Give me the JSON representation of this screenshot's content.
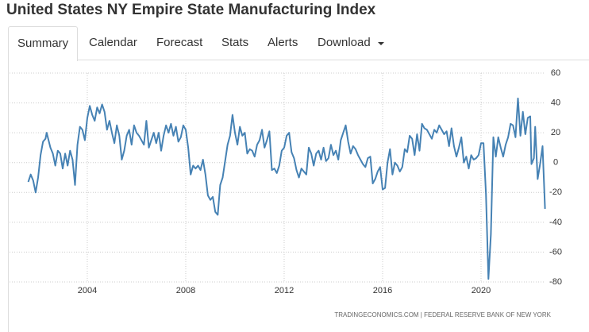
{
  "header": {
    "title": "United States NY Empire State Manufacturing Index"
  },
  "tabs": [
    "Summary",
    "Calendar",
    "Forecast",
    "Stats",
    "Alerts",
    "Download"
  ],
  "chart_data": {
    "type": "line",
    "source": "TRADINGECONOMICS.COM | FEDERAL RESERVE BANK OF NEW YORK",
    "color": "#4682b4",
    "grid": true,
    "x": [
      2001.6,
      2001.7,
      2001.8,
      2001.9,
      2002.0,
      2002.1,
      2002.2,
      2002.3,
      2002.35,
      2002.5,
      2002.6,
      2002.7,
      2002.8,
      2002.9,
      2003.0,
      2003.1,
      2003.2,
      2003.3,
      2003.4,
      2003.5,
      2003.6,
      2003.7,
      2003.8,
      2003.9,
      2004.0,
      2004.1,
      2004.2,
      2004.3,
      2004.4,
      2004.5,
      2004.6,
      2004.7,
      2004.8,
      2004.9,
      2005.0,
      2005.1,
      2005.2,
      2005.3,
      2005.4,
      2005.5,
      2005.6,
      2005.7,
      2005.8,
      2005.9,
      2006.0,
      2006.1,
      2006.3,
      2006.4,
      2006.5,
      2006.6,
      2006.7,
      2006.8,
      2006.9,
      2007.0,
      2007.1,
      2007.2,
      2007.3,
      2007.4,
      2007.5,
      2007.6,
      2007.7,
      2007.8,
      2007.9,
      2008.0,
      2008.1,
      2008.2,
      2008.3,
      2008.4,
      2008.5,
      2008.6,
      2008.7,
      2008.8,
      2008.9,
      2009.0,
      2009.1,
      2009.2,
      2009.3,
      2009.4,
      2009.5,
      2009.6,
      2009.7,
      2009.8,
      2009.9,
      2010.0,
      2010.1,
      2010.2,
      2010.3,
      2010.4,
      2010.5,
      2010.6,
      2010.7,
      2010.8,
      2010.9,
      2011.0,
      2011.1,
      2011.2,
      2011.3,
      2011.4,
      2011.5,
      2011.6,
      2011.7,
      2011.8,
      2011.9,
      2012.0,
      2012.1,
      2012.2,
      2012.3,
      2012.4,
      2012.5,
      2012.6,
      2012.7,
      2012.8,
      2012.9,
      2013.0,
      2013.1,
      2013.2,
      2013.3,
      2013.4,
      2013.5,
      2013.6,
      2013.7,
      2013.8,
      2013.9,
      2014.0,
      2014.1,
      2014.2,
      2014.3,
      2014.4,
      2014.5,
      2014.6,
      2014.7,
      2014.8,
      2014.9,
      2015.0,
      2015.1,
      2015.2,
      2015.3,
      2015.4,
      2015.5,
      2015.6,
      2015.7,
      2015.8,
      2015.9,
      2016.0,
      2016.1,
      2016.2,
      2016.3,
      2016.4,
      2016.5,
      2016.6,
      2016.7,
      2016.8,
      2016.9,
      2017.0,
      2017.1,
      2017.2,
      2017.3,
      2017.4,
      2017.5,
      2017.6,
      2017.7,
      2017.8,
      2017.9,
      2018.0,
      2018.1,
      2018.2,
      2018.3,
      2018.4,
      2018.5,
      2018.6,
      2018.7,
      2018.8,
      2018.9,
      2019.0,
      2019.1,
      2019.2,
      2019.3,
      2019.4,
      2019.5,
      2019.6,
      2019.7,
      2019.8,
      2019.9,
      2020.0,
      2020.1,
      2020.2,
      2020.3,
      2020.4,
      2020.5,
      2020.6,
      2020.7,
      2020.8,
      2020.9,
      2021.0,
      2021.1,
      2021.2,
      2021.3,
      2021.4,
      2021.5,
      2021.6,
      2021.7,
      2021.8,
      2021.9,
      2022.0,
      2022.05,
      2022.15,
      2022.2,
      2022.3,
      2022.4,
      2022.5,
      2022.6
    ],
    "values": [
      -13,
      -8,
      -12,
      -20,
      -10,
      5,
      14,
      16,
      20,
      10,
      6,
      -2,
      8,
      6,
      -4,
      6,
      -2,
      8,
      2,
      -15,
      12,
      24,
      22,
      15,
      30,
      38,
      32,
      28,
      37,
      33,
      39,
      34,
      22,
      28,
      20,
      13,
      25,
      18,
      2,
      8,
      18,
      22,
      12,
      25,
      20,
      18,
      12,
      28,
      10,
      15,
      20,
      13,
      20,
      8,
      18,
      25,
      20,
      26,
      18,
      24,
      14,
      17,
      25,
      22,
      10,
      -8,
      -2,
      -4,
      -2,
      -5,
      2,
      -8,
      -22,
      -25,
      -23,
      -33,
      -35,
      -15,
      -10,
      1,
      12,
      18,
      32,
      20,
      12,
      24,
      18,
      20,
      6,
      9,
      8,
      4,
      12,
      15,
      22,
      10,
      15,
      21,
      -5,
      -4,
      -7,
      -2,
      8,
      10,
      18,
      20,
      7,
      3,
      -5,
      -10,
      -4,
      -6,
      -8,
      10,
      6,
      -2,
      6,
      8,
      2,
      10,
      1,
      3,
      12,
      5,
      8,
      2,
      15,
      20,
      25,
      14,
      6,
      11,
      9,
      5,
      2,
      -1,
      -3,
      3,
      4,
      -14,
      -11,
      -6,
      -3,
      -18,
      -17,
      0,
      9,
      -8,
      0,
      -2,
      -6,
      -3,
      9,
      7,
      18,
      16,
      5,
      19,
      8,
      26,
      23,
      22,
      19,
      16,
      22,
      20,
      25,
      22,
      19,
      21,
      11,
      23,
      11,
      4,
      10,
      17,
      0,
      4,
      -4,
      5,
      2,
      3,
      5,
      13,
      13,
      -21,
      -78,
      -48,
      17,
      4,
      17,
      10,
      4,
      12,
      17,
      26,
      25,
      17,
      43,
      18,
      34,
      19,
      30,
      31,
      -1,
      3,
      24,
      -11,
      -1,
      11,
      -31
    ],
    "xlim": [
      2000.84,
      2022.6
    ],
    "xticks": [
      2004,
      2008,
      2012,
      2016,
      2020
    ],
    "ylim": [
      -80,
      60
    ],
    "yticks": [
      -80,
      -60,
      -40,
      -20,
      0,
      20,
      40,
      60
    ]
  }
}
